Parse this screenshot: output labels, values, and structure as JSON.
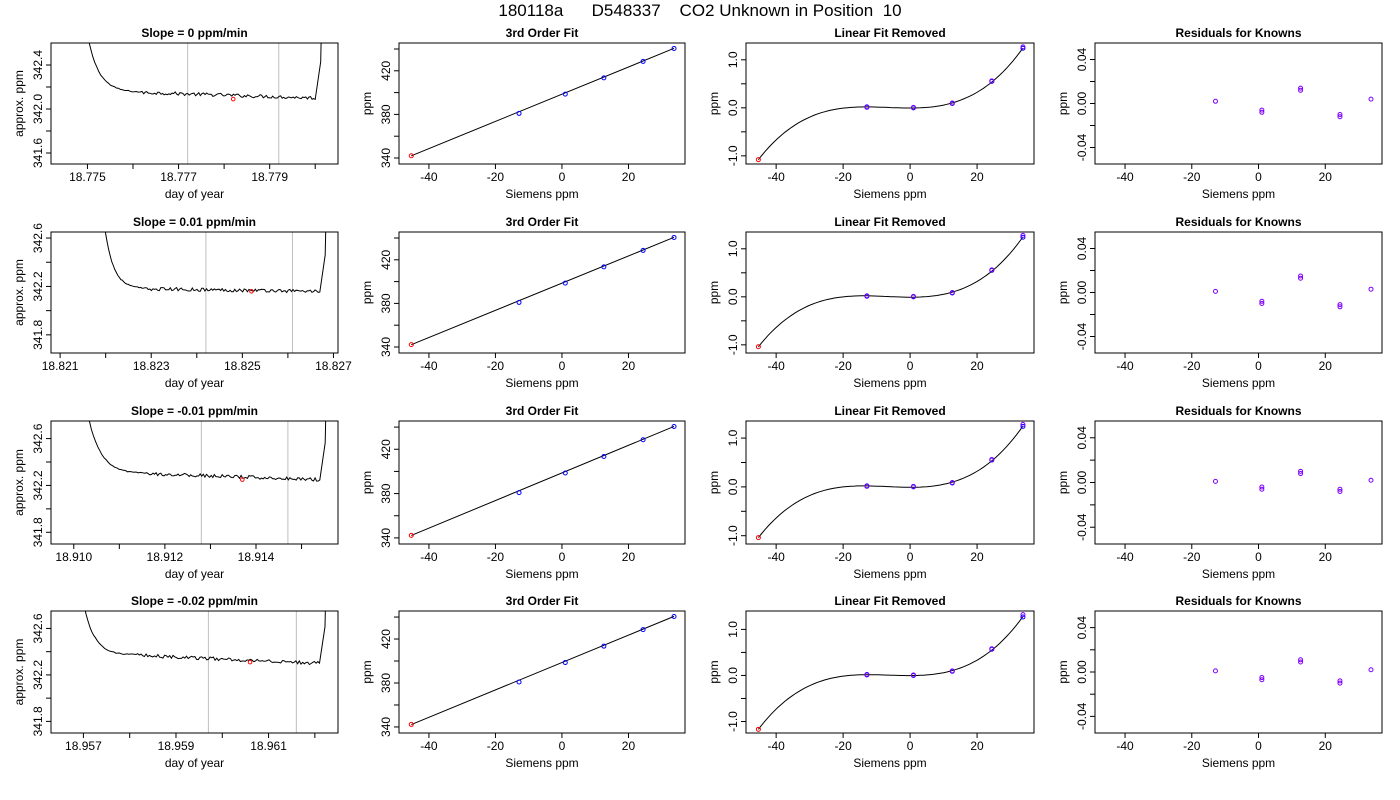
{
  "title": "180118a      D548337    CO2 Unknown in Position  10",
  "colors": {
    "line": "#000000",
    "known_point": "#0000ff",
    "unknown_point": "#ff0000",
    "residual_point": "#7f00ff",
    "marker_line": "#bebebe"
  },
  "chart_data": [
    {
      "type": "line",
      "row": 1,
      "col": 1,
      "title": "Slope =  0  ppm/min",
      "xlabel": "day of year",
      "ylabel": "approx. ppm",
      "xlim": [
        18.7742,
        18.7805
      ],
      "ylim": [
        341.5,
        342.6
      ],
      "xticks": [
        "18.775",
        "18.777",
        "18.779"
      ],
      "xtick_values": [
        18.775,
        18.777,
        18.779
      ],
      "xminor": [
        18.776,
        18.778,
        18.78
      ],
      "yticks": [
        "341.6",
        "342.0",
        "342.4"
      ],
      "ytick_values": [
        341.6,
        342.0,
        342.4
      ],
      "yminor": [
        341.8,
        342.2
      ],
      "vlines": [
        18.7772,
        18.7792
      ],
      "start_x": 18.7749,
      "end_x": 18.7802,
      "plateau_start": 18.7762,
      "plateau_end": 18.78,
      "plateau_y": 342.15,
      "plateau_end_y": 342.1,
      "marker": {
        "x": 18.7782,
        "y": 342.09
      }
    },
    {
      "type": "scatter",
      "row": 1,
      "col": 2,
      "title": "3rd Order Fit",
      "xlabel": "Siemens ppm",
      "ylabel": "ppm",
      "xlim": [
        -49,
        37
      ],
      "ylim": [
        334.5,
        445.5
      ],
      "xticks": [
        "-40",
        "-20",
        "0",
        "20"
      ],
      "xtick_values": [
        -40,
        -20,
        0,
        20
      ],
      "yticks": [
        "340",
        "380",
        "420"
      ],
      "ytick_values": [
        340,
        380,
        420
      ],
      "yminor": [
        360,
        400,
        440
      ],
      "known": {
        "x": [
          -12.9,
          1.0,
          12.6,
          24.4,
          33.7
        ],
        "y": [
          380.9,
          398.6,
          413.5,
          428.6,
          440.5
        ]
      },
      "unknown": {
        "x": [
          -45.3
        ],
        "y": [
          342.1
        ]
      },
      "fit": {
        "x": [
          -45.3,
          33.7
        ],
        "y": [
          342.0,
          440.6
        ]
      }
    },
    {
      "type": "scatter",
      "row": 1,
      "col": 3,
      "title": "Linear Fit Removed",
      "xlabel": "Siemens ppm",
      "ylabel": "ppm",
      "xlim": [
        -49,
        37
      ],
      "ylim": [
        -1.17,
        1.35
      ],
      "xticks": [
        "-40",
        "-20",
        "0",
        "20"
      ],
      "xtick_values": [
        -40,
        -20,
        0,
        20
      ],
      "yticks": [
        "-1.0",
        "0.0",
        "1.0"
      ],
      "ytick_values": [
        -1.0,
        0.0,
        1.0
      ],
      "yminor": [
        -0.5,
        0.5
      ],
      "known": {
        "x": [
          -12.9,
          1.0,
          12.6,
          24.4,
          33.7
        ],
        "y": [
          0.02,
          0.0,
          0.09,
          0.55,
          1.24
        ]
      },
      "known_extra": {
        "x": [
          -12.9,
          1.0,
          12.6,
          24.4,
          33.7
        ],
        "y": [
          0.01,
          0.01,
          0.1,
          0.56,
          1.27
        ]
      },
      "unknown": {
        "x": [
          -45.3
        ],
        "y": [
          -1.08
        ]
      },
      "curve": "cubic"
    },
    {
      "type": "scatter",
      "row": 1,
      "col": 4,
      "title": "Residuals for Knowns",
      "xlabel": "Siemens ppm",
      "ylabel": "ppm",
      "xlim": [
        -49,
        37
      ],
      "ylim": [
        -0.055,
        0.055
      ],
      "xticks": [
        "-40",
        "-20",
        "0",
        "20"
      ],
      "xtick_values": [
        -40,
        -20,
        0,
        20
      ],
      "yticks": [
        "-0.04",
        "0.00",
        "0.04"
      ],
      "ytick_values": [
        -0.04,
        0.0,
        0.04
      ],
      "yminor": [
        -0.02,
        0.02
      ],
      "residuals": {
        "x": [
          -12.9,
          1.0,
          1.0,
          12.6,
          12.6,
          24.4,
          24.4,
          33.7
        ],
        "y": [
          0.002,
          -0.006,
          -0.008,
          0.014,
          0.012,
          -0.01,
          -0.012,
          0.004
        ]
      }
    },
    {
      "type": "line",
      "row": 2,
      "col": 1,
      "title": "Slope =  0.01  ppm/min",
      "xlabel": "day of year",
      "ylabel": "approx. ppm",
      "xlim": [
        18.8208,
        18.8271
      ],
      "ylim": [
        341.65,
        342.65
      ],
      "xticks": [
        "18.821",
        "18.823",
        "18.825",
        "18.827"
      ],
      "xtick_values": [
        18.821,
        18.823,
        18.825,
        18.827
      ],
      "xminor": [
        18.822,
        18.824,
        18.826
      ],
      "yticks": [
        "341.8",
        "342.2",
        "342.6"
      ],
      "ytick_values": [
        341.8,
        342.2,
        342.6
      ],
      "yminor": [
        342.0,
        342.4
      ],
      "vlines": [
        18.8242,
        18.8261
      ],
      "start_x": 18.8219,
      "end_x": 18.8269,
      "plateau_start": 18.8229,
      "plateau_end": 18.8267,
      "plateau_y": 342.18,
      "plateau_end_y": 342.16,
      "marker": {
        "x": 18.8252,
        "y": 342.16
      }
    },
    {
      "type": "scatter",
      "row": 2,
      "col": 2,
      "title": "3rd Order Fit",
      "xlabel": "Siemens ppm",
      "ylabel": "ppm",
      "xlim": [
        -49,
        37
      ],
      "ylim": [
        334.5,
        445.5
      ],
      "xticks": [
        "-40",
        "-20",
        "0",
        "20"
      ],
      "xtick_values": [
        -40,
        -20,
        0,
        20
      ],
      "yticks": [
        "340",
        "380",
        "420"
      ],
      "ytick_values": [
        340,
        380,
        420
      ],
      "yminor": [
        360,
        400,
        440
      ],
      "known": {
        "x": [
          -12.9,
          1.0,
          12.6,
          24.4,
          33.7
        ],
        "y": [
          380.9,
          398.6,
          413.5,
          428.6,
          440.5
        ]
      },
      "unknown": {
        "x": [
          -45.3
        ],
        "y": [
          342.2
        ]
      },
      "fit": {
        "x": [
          -45.3,
          33.7
        ],
        "y": [
          342.1,
          440.6
        ]
      }
    },
    {
      "type": "scatter",
      "row": 2,
      "col": 3,
      "title": "Linear Fit Removed",
      "xlabel": "Siemens ppm",
      "ylabel": "ppm",
      "xlim": [
        -49,
        37
      ],
      "ylim": [
        -1.17,
        1.35
      ],
      "xticks": [
        "-40",
        "-20",
        "0",
        "20"
      ],
      "xtick_values": [
        -40,
        -20,
        0,
        20
      ],
      "yticks": [
        "-1.0",
        "0.0",
        "1.0"
      ],
      "ytick_values": [
        -1.0,
        0.0,
        1.0
      ],
      "yminor": [
        -0.5,
        0.5
      ],
      "known": {
        "x": [
          -12.9,
          1.0,
          12.6,
          24.4,
          33.7
        ],
        "y": [
          0.02,
          0.0,
          0.08,
          0.55,
          1.24
        ]
      },
      "known_extra": {
        "x": [
          -12.9,
          1.0,
          12.6,
          24.4,
          33.7
        ],
        "y": [
          0.01,
          0.01,
          0.09,
          0.56,
          1.28
        ]
      },
      "unknown": {
        "x": [
          -45.3
        ],
        "y": [
          -1.04
        ]
      },
      "curve": "cubic"
    },
    {
      "type": "scatter",
      "row": 2,
      "col": 4,
      "title": "Residuals for Knowns",
      "xlabel": "Siemens ppm",
      "ylabel": "ppm",
      "xlim": [
        -49,
        37
      ],
      "ylim": [
        -0.055,
        0.055
      ],
      "xticks": [
        "-40",
        "-20",
        "0",
        "20"
      ],
      "xtick_values": [
        -40,
        -20,
        0,
        20
      ],
      "yticks": [
        "-0.04",
        "0.00",
        "0.04"
      ],
      "ytick_values": [
        -0.04,
        0.0,
        0.04
      ],
      "yminor": [
        -0.02,
        0.02
      ],
      "residuals": {
        "x": [
          -12.9,
          1.0,
          1.0,
          12.6,
          12.6,
          24.4,
          24.4,
          33.7
        ],
        "y": [
          0.001,
          -0.008,
          -0.01,
          0.015,
          0.013,
          -0.011,
          -0.013,
          0.003
        ]
      }
    },
    {
      "type": "line",
      "row": 3,
      "col": 1,
      "title": "Slope =  -0.01  ppm/min",
      "xlabel": "day of year",
      "ylabel": "approx. ppm",
      "xlim": [
        18.9095,
        18.9158
      ],
      "ylim": [
        341.7,
        342.75
      ],
      "xticks": [
        "18.910",
        "18.912",
        "18.914"
      ],
      "xtick_values": [
        18.91,
        18.912,
        18.914
      ],
      "xminor": [
        18.911,
        18.913,
        18.915
      ],
      "yticks": [
        "341.8",
        "342.2",
        "342.6"
      ],
      "ytick_values": [
        341.8,
        342.2,
        342.6
      ],
      "yminor": [
        342.0,
        342.4
      ],
      "vlines": [
        18.9128,
        18.9147
      ],
      "start_x": 18.9102,
      "end_x": 18.9156,
      "plateau_start": 18.9116,
      "plateau_end": 18.9154,
      "plateau_y": 342.3,
      "plateau_end_y": 342.25,
      "marker": {
        "x": 18.9137,
        "y": 342.25
      }
    },
    {
      "type": "scatter",
      "row": 3,
      "col": 2,
      "title": "3rd Order Fit",
      "xlabel": "Siemens ppm",
      "ylabel": "ppm",
      "xlim": [
        -49,
        37
      ],
      "ylim": [
        334.5,
        445.5
      ],
      "xticks": [
        "-40",
        "-20",
        "0",
        "20"
      ],
      "xtick_values": [
        -40,
        -20,
        0,
        20
      ],
      "yticks": [
        "340",
        "380",
        "420"
      ],
      "ytick_values": [
        340,
        380,
        420
      ],
      "yminor": [
        360,
        400,
        440
      ],
      "known": {
        "x": [
          -12.9,
          1.0,
          12.6,
          24.4,
          33.7
        ],
        "y": [
          380.9,
          398.6,
          413.5,
          428.6,
          440.5
        ]
      },
      "unknown": {
        "x": [
          -45.3
        ],
        "y": [
          342.3
        ]
      },
      "fit": {
        "x": [
          -45.3,
          33.7
        ],
        "y": [
          342.2,
          440.6
        ]
      }
    },
    {
      "type": "scatter",
      "row": 3,
      "col": 3,
      "title": "Linear Fit Removed",
      "xlabel": "Siemens ppm",
      "ylabel": "ppm",
      "xlim": [
        -49,
        37
      ],
      "ylim": [
        -1.17,
        1.35
      ],
      "xticks": [
        "-40",
        "-20",
        "0",
        "20"
      ],
      "xtick_values": [
        -40,
        -20,
        0,
        20
      ],
      "yticks": [
        "-1.0",
        "0.0",
        "1.0"
      ],
      "ytick_values": [
        -1.0,
        0.0,
        1.0
      ],
      "yminor": [
        -0.5,
        0.5
      ],
      "known": {
        "x": [
          -12.9,
          1.0,
          12.6,
          24.4,
          33.7
        ],
        "y": [
          0.02,
          0.0,
          0.08,
          0.55,
          1.24
        ]
      },
      "known_extra": {
        "x": [
          -12.9,
          1.0,
          12.6,
          24.4,
          33.7
        ],
        "y": [
          0.01,
          0.01,
          0.09,
          0.56,
          1.28
        ]
      },
      "unknown": {
        "x": [
          -45.3
        ],
        "y": [
          -1.04
        ]
      },
      "curve": "cubic"
    },
    {
      "type": "scatter",
      "row": 3,
      "col": 4,
      "title": "Residuals for Knowns",
      "xlabel": "Siemens ppm",
      "ylabel": "ppm",
      "xlim": [
        -49,
        37
      ],
      "ylim": [
        -0.055,
        0.055
      ],
      "xticks": [
        "-40",
        "-20",
        "0",
        "20"
      ],
      "xtick_values": [
        -40,
        -20,
        0,
        20
      ],
      "yticks": [
        "-0.04",
        "0.00",
        "0.04"
      ],
      "ytick_values": [
        -0.04,
        0.0,
        0.04
      ],
      "yminor": [
        -0.02,
        0.02
      ],
      "residuals": {
        "x": [
          -12.9,
          1.0,
          1.0,
          12.6,
          12.6,
          24.4,
          24.4,
          33.7
        ],
        "y": [
          0.001,
          -0.004,
          -0.006,
          0.01,
          0.008,
          -0.006,
          -0.008,
          0.002
        ]
      }
    },
    {
      "type": "line",
      "row": 4,
      "col": 1,
      "title": "Slope =  -0.02  ppm/min",
      "xlabel": "day of year",
      "ylabel": "approx. ppm",
      "xlim": [
        18.9563,
        18.9625
      ],
      "ylim": [
        341.7,
        342.75
      ],
      "xticks": [
        "18.957",
        "18.959",
        "18.961"
      ],
      "xtick_values": [
        18.957,
        18.959,
        18.961
      ],
      "xminor": [
        18.958,
        18.96,
        18.962
      ],
      "yticks": [
        "341.8",
        "342.2",
        "342.6"
      ],
      "ytick_values": [
        341.8,
        342.2,
        342.6
      ],
      "yminor": [
        342.0,
        342.4
      ],
      "vlines": [
        18.9597,
        18.9616
      ],
      "start_x": 18.9569,
      "end_x": 18.9623,
      "plateau_start": 18.9581,
      "plateau_end": 18.9621,
      "plateau_y": 342.37,
      "plateau_end_y": 342.3,
      "marker": {
        "x": 18.9606,
        "y": 342.31
      }
    },
    {
      "type": "scatter",
      "row": 4,
      "col": 2,
      "title": "3rd Order Fit",
      "xlabel": "Siemens ppm",
      "ylabel": "ppm",
      "xlim": [
        -49,
        37
      ],
      "ylim": [
        334.5,
        445.5
      ],
      "xticks": [
        "-40",
        "-20",
        "0",
        "20"
      ],
      "xtick_values": [
        -40,
        -20,
        0,
        20
      ],
      "yticks": [
        "340",
        "380",
        "420"
      ],
      "ytick_values": [
        340,
        380,
        420
      ],
      "yminor": [
        360,
        400,
        440
      ],
      "known": {
        "x": [
          -12.9,
          1.0,
          12.6,
          24.4,
          33.7
        ],
        "y": [
          380.9,
          398.6,
          413.5,
          428.6,
          440.5
        ]
      },
      "unknown": {
        "x": [
          -45.3
        ],
        "y": [
          342.3
        ]
      },
      "fit": {
        "x": [
          -45.3,
          33.7
        ],
        "y": [
          342.2,
          440.6
        ]
      }
    },
    {
      "type": "scatter",
      "row": 4,
      "col": 3,
      "title": "Linear Fit Removed",
      "xlabel": "Siemens ppm",
      "ylabel": "ppm",
      "xlim": [
        -49,
        37
      ],
      "ylim": [
        -1.25,
        1.4
      ],
      "xticks": [
        "-40",
        "-20",
        "0",
        "20"
      ],
      "xtick_values": [
        -40,
        -20,
        0,
        20
      ],
      "yticks": [
        "-1.0",
        "0.0",
        "1.0"
      ],
      "ytick_values": [
        -1.0,
        0.0,
        1.0
      ],
      "yminor": [
        -0.5,
        0.5
      ],
      "known": {
        "x": [
          -12.9,
          1.0,
          12.6,
          24.4,
          33.7
        ],
        "y": [
          0.02,
          0.0,
          0.09,
          0.57,
          1.27
        ]
      },
      "known_extra": {
        "x": [
          -12.9,
          1.0,
          12.6,
          24.4,
          33.7
        ],
        "y": [
          0.01,
          0.01,
          0.1,
          0.58,
          1.32
        ]
      },
      "unknown": {
        "x": [
          -45.3
        ],
        "y": [
          -1.17
        ]
      },
      "curve": "cubic"
    },
    {
      "type": "scatter",
      "row": 4,
      "col": 4,
      "title": "Residuals for Knowns",
      "xlabel": "Siemens ppm",
      "ylabel": "ppm",
      "xlim": [
        -49,
        37
      ],
      "ylim": [
        -0.055,
        0.055
      ],
      "xticks": [
        "-40",
        "-20",
        "0",
        "20"
      ],
      "xtick_values": [
        -40,
        -20,
        0,
        20
      ],
      "yticks": [
        "-0.04",
        "0.00",
        "0.04"
      ],
      "ytick_values": [
        -0.04,
        0.0,
        0.04
      ],
      "yminor": [
        -0.02,
        0.02
      ],
      "residuals": {
        "x": [
          -12.9,
          1.0,
          1.0,
          12.6,
          12.6,
          24.4,
          24.4,
          33.7
        ],
        "y": [
          0.001,
          -0.005,
          -0.007,
          0.011,
          0.009,
          -0.008,
          -0.01,
          0.002
        ]
      }
    }
  ]
}
